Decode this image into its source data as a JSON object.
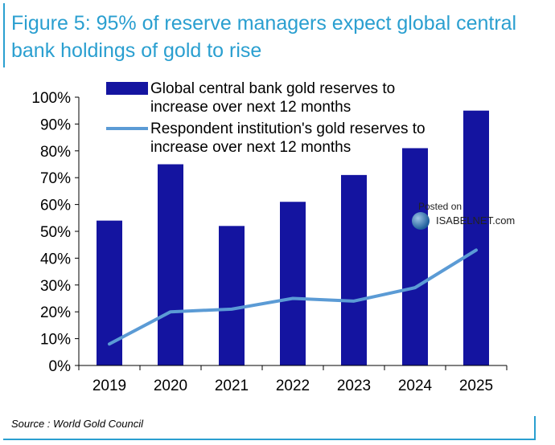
{
  "title_lines": [
    "Figure 5: 95% of reserve managers expect global central",
    "bank holdings of gold to rise"
  ],
  "source": "Source : World Gold Council",
  "watermark": {
    "posted": "Posted on",
    "brand": "ISABELNET.com"
  },
  "colors": {
    "bar": "#1414a0",
    "line": "#5b9bd5",
    "accent": "#2a9fd0"
  },
  "chart_data": {
    "type": "bar",
    "categories": [
      "2019",
      "2020",
      "2021",
      "2022",
      "2023",
      "2024",
      "2025"
    ],
    "series": [
      {
        "name": "Global central bank gold reserves to increase over next 12 months",
        "legend_lines": [
          "Global central bank gold reserves to",
          "increase over next 12 months"
        ],
        "type": "bar",
        "values": [
          54,
          75,
          52,
          61,
          71,
          81,
          95
        ]
      },
      {
        "name": "Respondent institution's gold reserves to increase over next 12 months",
        "legend_lines": [
          "Respondent institution's gold reserves to",
          "increase over next 12 months"
        ],
        "type": "line",
        "values": [
          8,
          20,
          21,
          25,
          24,
          29,
          43
        ]
      }
    ],
    "ylim": [
      0,
      100
    ],
    "yticks": [
      "0%",
      "10%",
      "20%",
      "30%",
      "40%",
      "50%",
      "60%",
      "70%",
      "80%",
      "90%",
      "100%"
    ],
    "legend_position": "top",
    "grid": false
  }
}
